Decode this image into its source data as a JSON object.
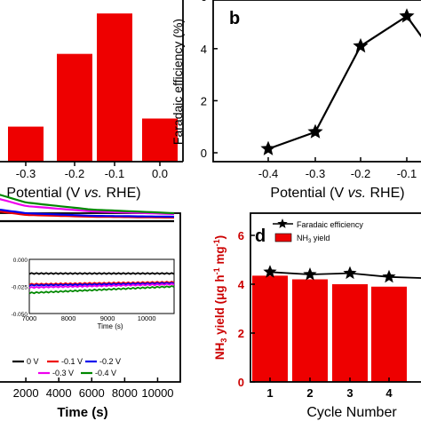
{
  "colors": {
    "bar": "#ee0000",
    "line": "#000000",
    "axis_red": "#cc0000",
    "magenta": "#ee00ee",
    "green": "#008800",
    "blue": "#0000ee",
    "red": "#ee0000"
  },
  "panel_a": {
    "xlabel": "Potential (V vs. RHE)",
    "chart_data": {
      "type": "bar",
      "categories": [
        "-0.3",
        "-0.2",
        "-0.1",
        "0.0"
      ],
      "values": [
        0.13,
        0.4,
        0.55,
        0.16
      ],
      "ylim": [
        0,
        0.6
      ],
      "title": "",
      "ylabel": ""
    }
  },
  "panel_b": {
    "letter": "b",
    "ylabel": "Faradaic efficiency (%)",
    "xlabel": "Potential (V vs. RHE)",
    "chart_data": {
      "type": "line",
      "categories": [
        "-0.4",
        "-0.3",
        "-0.2",
        "-0.1"
      ],
      "values": [
        0.15,
        0.8,
        4.1,
        5.25
      ],
      "y_ticks": [
        "0",
        "2",
        "4",
        "6"
      ],
      "ylim": [
        -0.3,
        6.5
      ],
      "marker": "star"
    }
  },
  "panel_c": {
    "xlabel": "Time (s)",
    "x_ticks": [
      "2000",
      "4000",
      "6000",
      "8000",
      "10000"
    ],
    "inset": {
      "y_ticks": [
        "0.000",
        "-0.025",
        "-0.050"
      ],
      "x_ticks": [
        "7000",
        "8000",
        "9000",
        "10000"
      ],
      "xlabel": "Time (s)"
    },
    "legend": [
      "0 V",
      "-0.1 V",
      "-0.2 V",
      "-0.3 V",
      "-0.4 V"
    ],
    "chart_data": {
      "type": "line",
      "x_range": [
        0,
        11000
      ],
      "series": [
        {
          "name": "0 V",
          "x": [
            0,
            11000
          ],
          "y": [
            -0.003,
            -0.003
          ]
        },
        {
          "name": "-0.1 V",
          "x": [
            0,
            2000,
            6000,
            11000
          ],
          "y": [
            -0.015,
            -0.01,
            -0.008,
            -0.007
          ]
        },
        {
          "name": "-0.2 V",
          "x": [
            0,
            2000,
            6000,
            11000
          ],
          "y": [
            -0.017,
            -0.012,
            -0.009,
            -0.008
          ]
        },
        {
          "name": "-0.3 V",
          "x": [
            0,
            2000,
            6000,
            11000
          ],
          "y": [
            -0.03,
            -0.02,
            -0.014,
            -0.011
          ]
        },
        {
          "name": "-0.4 V",
          "x": [
            0,
            2000,
            6000,
            11000
          ],
          "y": [
            -0.035,
            -0.024,
            -0.016,
            -0.012
          ]
        }
      ],
      "inset_series": [
        {
          "name": "0 V",
          "x": [
            7000,
            10700
          ],
          "y": [
            -0.013,
            -0.013
          ]
        },
        {
          "name": "-0.1 V",
          "x": [
            7000,
            10700
          ],
          "y": [
            -0.023,
            -0.021
          ]
        },
        {
          "name": "-0.2 V",
          "x": [
            7000,
            10700
          ],
          "y": [
            -0.024,
            -0.022
          ]
        },
        {
          "name": "-0.3 V",
          "x": [
            7000,
            10700
          ],
          "y": [
            -0.026,
            -0.023
          ]
        },
        {
          "name": "-0.4 V",
          "x": [
            7000,
            10700
          ],
          "y": [
            -0.031,
            -0.025
          ]
        }
      ]
    }
  },
  "panel_d": {
    "letter": "d",
    "ylabel_pre": "NH",
    "ylabel_sub": "3",
    "ylabel_mid": " yield (μg h",
    "ylabel_sup1": "-1",
    "ylabel_mid2": " mg",
    "ylabel_sup2": "-1",
    "ylabel_end": ")",
    "xlabel": "Cycle Number",
    "legend_line": "Faradaic efficiency",
    "legend_bar_pre": "NH",
    "legend_bar_sub": "3",
    "legend_bar_end": " yield",
    "chart_data": {
      "type": "bar",
      "categories": [
        "1",
        "2",
        "3",
        "4"
      ],
      "series": [
        {
          "name": "NH3 yield",
          "values": [
            4.35,
            4.2,
            4.0,
            3.9
          ]
        },
        {
          "name": "Faradaic efficiency",
          "values": [
            4.5,
            4.4,
            4.45,
            4.3
          ]
        }
      ],
      "y_ticks": [
        "0",
        "2",
        "4",
        "6"
      ],
      "ylim": [
        0,
        6
      ]
    }
  }
}
